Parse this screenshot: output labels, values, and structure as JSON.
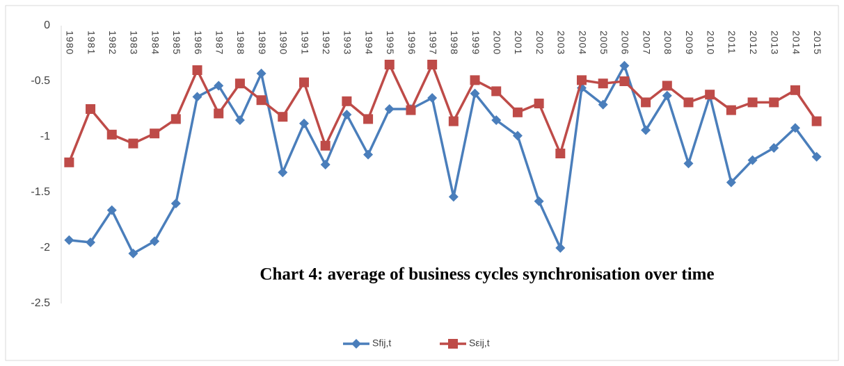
{
  "chart_data": {
    "type": "line",
    "title": "Chart 4:  average of business cycles synchronisation over time",
    "categories": [
      "1980",
      "1981",
      "1982",
      "1983",
      "1984",
      "1985",
      "1986",
      "1987",
      "1988",
      "1989",
      "1990",
      "1991",
      "1992",
      "1993",
      "1994",
      "1995",
      "1996",
      "1997",
      "1998",
      "1999",
      "2000",
      "2001",
      "2002",
      "2003",
      "2004",
      "2005",
      "2006",
      "2007",
      "2008",
      "2009",
      "2010",
      "2011",
      "2012",
      "2013",
      "2014",
      "2015"
    ],
    "series": [
      {
        "name": "Sfij,t",
        "color": "#4a7ebb",
        "marker": "diamond",
        "values": [
          -1.93,
          -1.95,
          -1.66,
          -2.05,
          -1.94,
          -1.6,
          -0.64,
          -0.54,
          -0.85,
          -0.43,
          -1.32,
          -0.88,
          -1.25,
          -0.8,
          -1.16,
          -0.75,
          -0.75,
          -0.65,
          -1.54,
          -0.61,
          -0.85,
          -0.99,
          -1.58,
          -2.0,
          -0.56,
          -0.71,
          -0.36,
          -0.94,
          -0.63,
          -1.24,
          -0.63,
          -1.41,
          -1.21,
          -1.1,
          -0.92,
          -1.18
        ]
      },
      {
        "name": "Sεij,t",
        "color": "#be4b48",
        "marker": "square",
        "values": [
          -1.23,
          -0.75,
          -0.98,
          -1.06,
          -0.97,
          -0.84,
          -0.4,
          -0.79,
          -0.52,
          -0.67,
          -0.82,
          -0.51,
          -1.08,
          -0.68,
          -0.84,
          -0.35,
          -0.76,
          -0.35,
          -0.86,
          -0.49,
          -0.59,
          -0.78,
          -0.7,
          -1.15,
          -0.49,
          -0.52,
          -0.5,
          -0.69,
          -0.54,
          -0.69,
          -0.62,
          -0.76,
          -0.69,
          -0.69,
          -0.58,
          -0.86
        ]
      }
    ],
    "ylim": [
      -2.5,
      0
    ],
    "yticks": [
      0,
      -0.5,
      -1,
      -1.5,
      -2,
      -2.5
    ],
    "grid": false,
    "legend": "bottom"
  }
}
